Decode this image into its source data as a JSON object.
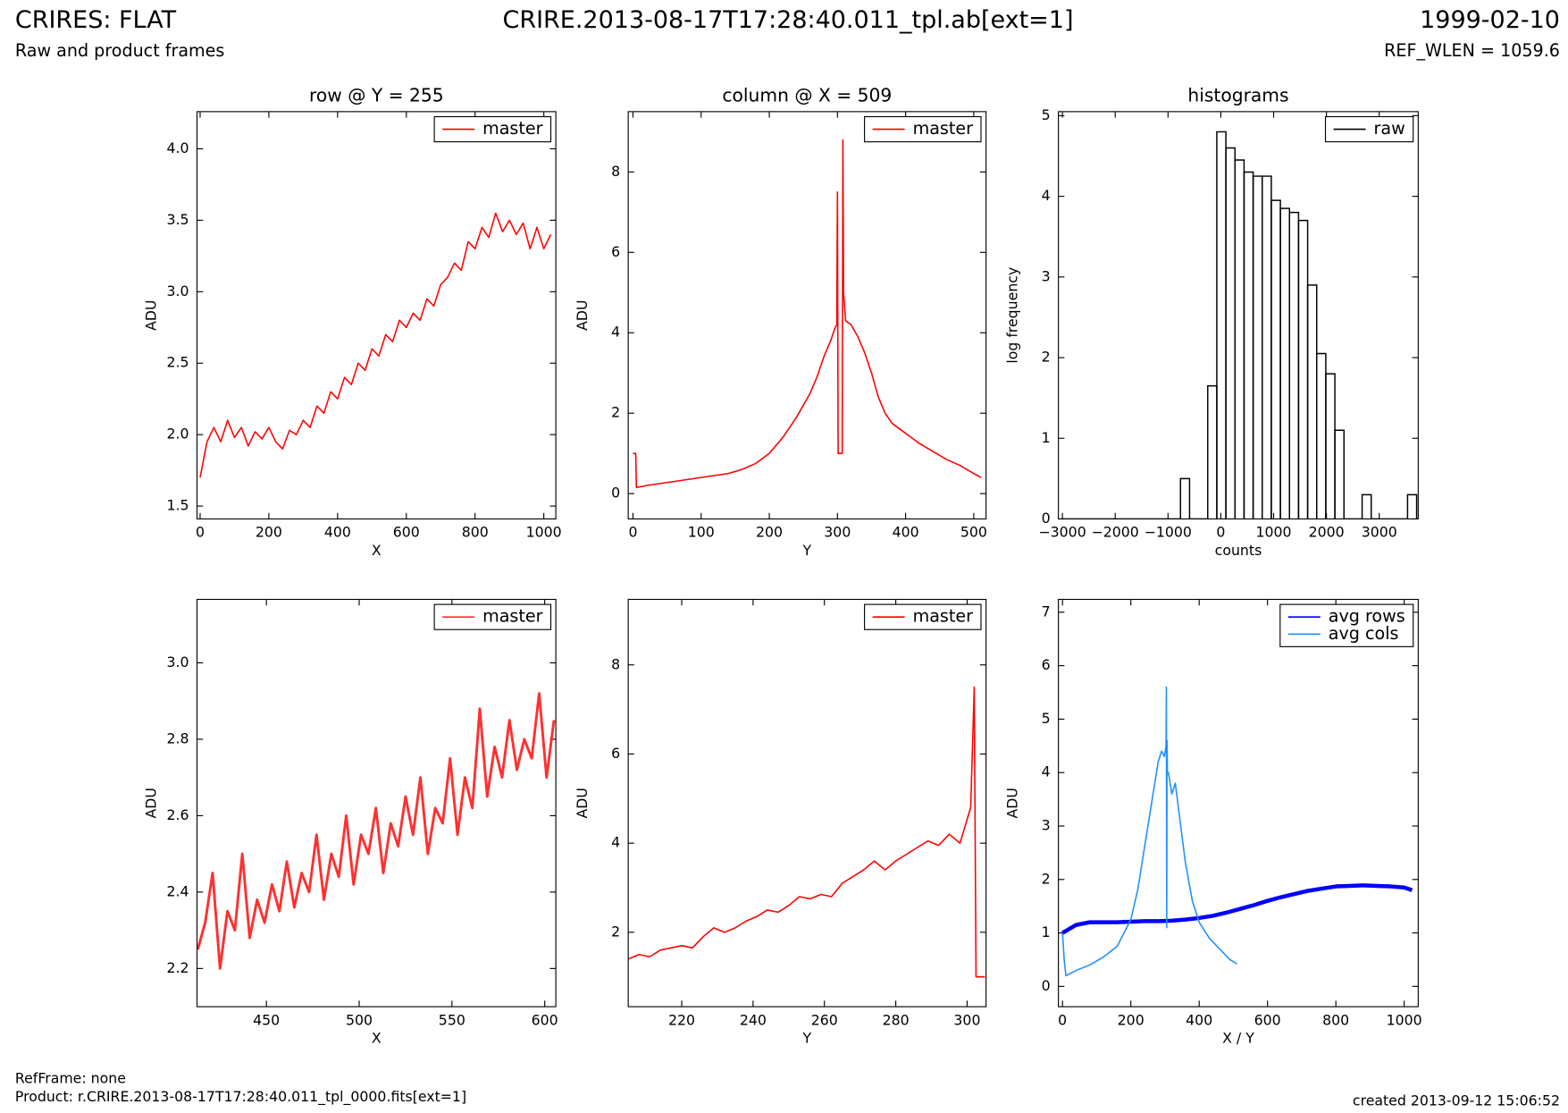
{
  "header": {
    "title": "CRIRES: FLAT",
    "subtitle": "Raw and product frames",
    "file": "CRIRE.2013-08-17T17:28:40.011_tpl.ab[ext=1]",
    "date": "1999-02-10",
    "ref_wlen": "REF_WLEN = 1059.6"
  },
  "chart_data": [
    {
      "type": "line",
      "title": "row @ Y = 255",
      "xlabel": "X",
      "ylabel": "ADU",
      "legend": "upper right",
      "xlim": [
        -9,
        1035
      ],
      "ylim": [
        1.41,
        4.26
      ],
      "xticks": [
        0,
        200,
        400,
        600,
        800,
        1000
      ],
      "yticks": [
        1.5,
        {
          "value": 2,
          "label": "2.0"
        },
        2.5,
        {
          "value": 3,
          "label": "3.0"
        },
        3.5,
        {
          "value": 4,
          "label": "4.0"
        }
      ],
      "series": [
        {
          "name": "master",
          "color": "#ff0000",
          "x": [
            0,
            20,
            40,
            60,
            80,
            100,
            120,
            140,
            160,
            180,
            200,
            220,
            240,
            260,
            280,
            300,
            320,
            340,
            360,
            380,
            400,
            420,
            440,
            460,
            480,
            500,
            520,
            540,
            560,
            580,
            600,
            620,
            640,
            660,
            680,
            700,
            720,
            740,
            760,
            780,
            800,
            820,
            840,
            860,
            880,
            900,
            920,
            940,
            960,
            980,
            1000,
            1020
          ],
          "values": [
            1.7,
            1.95,
            2.05,
            1.95,
            2.1,
            1.98,
            2.05,
            1.92,
            2.02,
            1.97,
            2.05,
            1.95,
            1.9,
            2.03,
            2.0,
            2.1,
            2.05,
            2.2,
            2.15,
            2.3,
            2.25,
            2.4,
            2.35,
            2.5,
            2.45,
            2.6,
            2.55,
            2.7,
            2.65,
            2.8,
            2.75,
            2.85,
            2.8,
            2.95,
            2.9,
            3.05,
            3.1,
            3.2,
            3.15,
            3.35,
            3.3,
            3.45,
            3.38,
            3.55,
            3.42,
            3.5,
            3.4,
            3.48,
            3.3,
            3.45,
            3.3,
            3.4
          ]
        }
      ]
    },
    {
      "type": "line",
      "title": "column @ X = 509",
      "xlabel": "Y",
      "ylabel": "ADU",
      "legend": "upper right",
      "xlim": [
        -7,
        518
      ],
      "ylim": [
        -0.63,
        9.5
      ],
      "xticks": [
        0,
        100,
        200,
        300,
        400,
        500
      ],
      "yticks": [
        0,
        2,
        4,
        6,
        8
      ],
      "series": [
        {
          "name": "master",
          "color": "#ff0000",
          "x": [
            0,
            4,
            5,
            20,
            40,
            60,
            80,
            100,
            120,
            140,
            160,
            180,
            200,
            220,
            240,
            260,
            270,
            280,
            290,
            296,
            299,
            300,
            301,
            307,
            308,
            309,
            312,
            320,
            330,
            340,
            350,
            360,
            370,
            380,
            400,
            420,
            440,
            460,
            480,
            500,
            511
          ],
          "values": [
            1.0,
            1.0,
            0.15,
            0.2,
            0.25,
            0.3,
            0.35,
            0.4,
            0.45,
            0.5,
            0.6,
            0.75,
            1.0,
            1.4,
            1.9,
            2.5,
            2.9,
            3.4,
            3.8,
            4.1,
            4.2,
            7.5,
            1.0,
            1.0,
            8.8,
            5.0,
            4.3,
            4.2,
            3.9,
            3.5,
            3.0,
            2.4,
            2.0,
            1.75,
            1.5,
            1.25,
            1.05,
            0.85,
            0.7,
            0.5,
            0.4
          ]
        }
      ]
    },
    {
      "type": "histogram",
      "title": "histograms",
      "xlabel": "counts",
      "ylabel": "log frequency",
      "legend": "upper right",
      "xlim": [
        -3076,
        3738
      ],
      "ylim": [
        0,
        5.05
      ],
      "xticks": [
        {
          "value": -3000,
          "label": "−3000"
        },
        {
          "value": -2000,
          "label": "−2000"
        },
        {
          "value": -1000,
          "label": "−1000"
        },
        0,
        1000,
        2000,
        3000
      ],
      "yticks": [
        0,
        1,
        2,
        3,
        4,
        5
      ],
      "series": [
        {
          "name": "raw",
          "color": "#000000",
          "bins": [
            -3000,
            -2828,
            -2656,
            -2484,
            -2312,
            -2140,
            -1968,
            -1796,
            -1624,
            -1452,
            -1280,
            -1108,
            -936,
            -764,
            -592,
            -420,
            -248,
            -76,
            96,
            268,
            440,
            612,
            784,
            956,
            1128,
            1300,
            1472,
            1644,
            1816,
            1988,
            2160,
            2332,
            2504,
            2676,
            2848,
            3020,
            3192,
            3364,
            3536,
            3708
          ],
          "values": [
            0,
            0,
            0,
            0,
            0,
            0,
            0,
            0,
            0,
            0,
            0,
            0,
            0,
            0.5,
            0,
            0,
            1.65,
            4.8,
            4.6,
            4.45,
            4.3,
            4.25,
            4.25,
            3.95,
            3.85,
            3.8,
            3.7,
            2.9,
            2.05,
            1.8,
            1.1,
            0,
            0,
            0.3,
            0,
            0,
            0,
            0,
            0.3
          ]
        }
      ]
    },
    {
      "type": "line",
      "xlabel": "X",
      "ylabel": "ADU",
      "legend": "upper right",
      "xlim": [
        412.6,
        606
      ],
      "ylim": [
        2.1,
        3.166
      ],
      "xticks": [
        450,
        500,
        550,
        600
      ],
      "yticks": [
        2.2,
        2.4,
        2.6,
        2.8,
        {
          "value": 3,
          "label": "3.0"
        }
      ],
      "series": [
        {
          "name": "master",
          "color": "#ff3030",
          "x": [
            413,
            417,
            421,
            425,
            429,
            433,
            437,
            441,
            445,
            449,
            453,
            457,
            461,
            465,
            469,
            473,
            477,
            481,
            485,
            489,
            493,
            497,
            501,
            505,
            509,
            513,
            517,
            521,
            525,
            529,
            533,
            537,
            541,
            545,
            549,
            553,
            557,
            561,
            565,
            569,
            573,
            577,
            581,
            585,
            589,
            593,
            597,
            601,
            605
          ],
          "values": [
            2.25,
            2.32,
            2.45,
            2.2,
            2.35,
            2.3,
            2.5,
            2.28,
            2.38,
            2.32,
            2.42,
            2.35,
            2.48,
            2.36,
            2.45,
            2.4,
            2.55,
            2.38,
            2.5,
            2.44,
            2.6,
            2.42,
            2.55,
            2.5,
            2.62,
            2.45,
            2.58,
            2.52,
            2.65,
            2.55,
            2.7,
            2.5,
            2.62,
            2.58,
            2.75,
            2.55,
            2.7,
            2.62,
            2.88,
            2.65,
            2.78,
            2.7,
            2.85,
            2.72,
            2.8,
            2.75,
            2.92,
            2.7,
            2.85
          ]
        }
      ]
    },
    {
      "type": "line",
      "xlabel": "Y",
      "ylabel": "ADU",
      "legend": "upper right",
      "xlim": [
        205,
        305.3
      ],
      "ylim": [
        0.33,
        9.47
      ],
      "xticks": [
        220,
        240,
        260,
        280,
        300
      ],
      "yticks": [
        2,
        4,
        6,
        8
      ],
      "series": [
        {
          "name": "master",
          "color": "#ff0000",
          "x": [
            205,
            208,
            211,
            214,
            217,
            220,
            223,
            226,
            229,
            232,
            235,
            238,
            241,
            244,
            247,
            250,
            253,
            256,
            259,
            262,
            265,
            268,
            271,
            274,
            277,
            280,
            283,
            286,
            289,
            292,
            295,
            298,
            301,
            302,
            302.5,
            305
          ],
          "values": [
            1.4,
            1.5,
            1.45,
            1.6,
            1.65,
            1.7,
            1.65,
            1.9,
            2.1,
            2.0,
            2.1,
            2.25,
            2.35,
            2.5,
            2.45,
            2.6,
            2.8,
            2.75,
            2.85,
            2.8,
            3.1,
            3.25,
            3.4,
            3.6,
            3.4,
            3.6,
            3.75,
            3.9,
            4.05,
            3.95,
            4.2,
            4.0,
            4.8,
            7.5,
            1.0,
            1.0
          ]
        }
      ]
    },
    {
      "type": "line",
      "xlabel": "X / Y",
      "ylabel": "ADU",
      "legend": "upper right",
      "xlim": [
        -12,
        1041
      ],
      "ylim": [
        -0.38,
        7.24
      ],
      "xticks": [
        0,
        200,
        400,
        600,
        800,
        1000
      ],
      "yticks": [
        0,
        1,
        2,
        3,
        4,
        5,
        6,
        7
      ],
      "series": [
        {
          "name": "avg rows",
          "color": "#0000ff",
          "x": [
            0,
            40,
            80,
            120,
            160,
            200,
            240,
            280,
            320,
            360,
            400,
            440,
            480,
            520,
            560,
            600,
            640,
            680,
            720,
            760,
            800,
            840,
            880,
            920,
            960,
            1000,
            1023
          ],
          "values": [
            1.0,
            1.15,
            1.2,
            1.2,
            1.2,
            1.21,
            1.22,
            1.22,
            1.23,
            1.25,
            1.28,
            1.32,
            1.38,
            1.45,
            1.52,
            1.6,
            1.67,
            1.73,
            1.79,
            1.83,
            1.87,
            1.88,
            1.89,
            1.88,
            1.87,
            1.85,
            1.8
          ]
        },
        {
          "name": "avg cols",
          "color": "#1e90ff",
          "x": [
            0,
            5,
            10,
            40,
            80,
            120,
            160,
            200,
            220,
            240,
            260,
            280,
            290,
            298,
            303,
            304,
            305,
            306,
            307,
            310,
            320,
            330,
            340,
            350,
            360,
            380,
            400,
            430,
            460,
            490,
            511
          ],
          "values": [
            1.0,
            0.5,
            0.2,
            0.3,
            0.4,
            0.55,
            0.75,
            1.25,
            1.8,
            2.6,
            3.4,
            4.2,
            4.4,
            4.3,
            4.5,
            5.6,
            1.1,
            4.6,
            4.0,
            4.0,
            3.6,
            3.8,
            3.3,
            2.8,
            2.3,
            1.6,
            1.2,
            0.9,
            0.7,
            0.5,
            0.42
          ]
        }
      ]
    }
  ],
  "footer": {
    "refframe": "RefFrame: none",
    "product": "Product: r.CRIRE.2013-08-17T17:28:40.011_tpl_0000.fits[ext=1]",
    "created": "created 2013-09-12 15:06:52"
  }
}
